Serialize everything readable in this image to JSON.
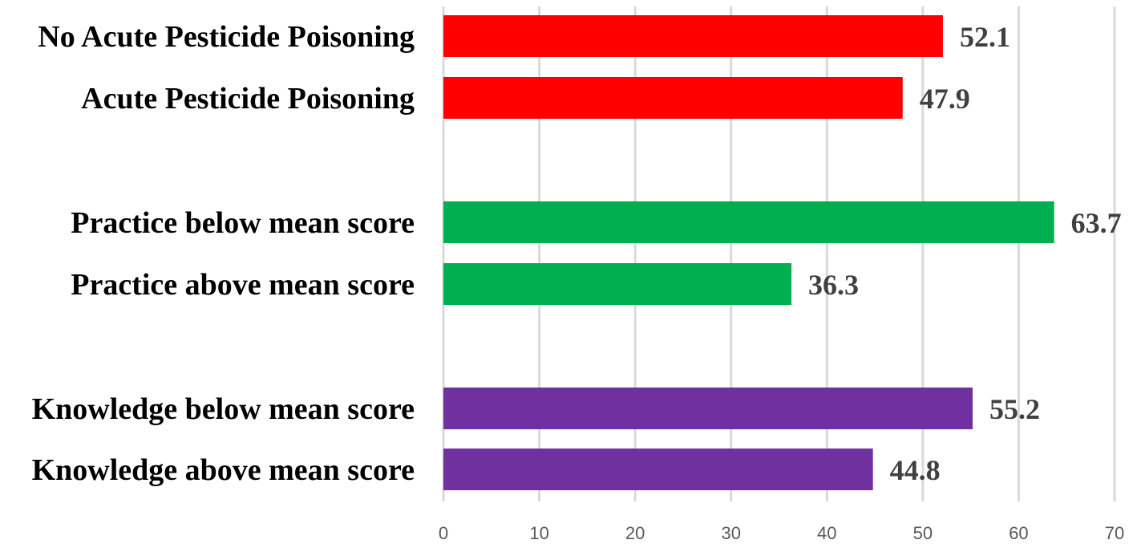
{
  "chart_data": {
    "type": "bar",
    "orientation": "horizontal",
    "categories": [
      "No Acute Pesticide Poisoning",
      "Acute Pesticide Poisoning",
      "Practice below mean score",
      "Practice above mean score",
      "Knowledge below mean score",
      "Knowledge above mean score"
    ],
    "values": [
      52.1,
      47.9,
      63.7,
      36.3,
      55.2,
      44.8
    ],
    "value_labels": [
      "52.1",
      "47.9",
      "63.7",
      "36.3",
      "55.2",
      "44.8"
    ],
    "groups": [
      {
        "color": "#ff0000",
        "members": [
          0,
          1
        ]
      },
      {
        "color": "#00b050",
        "members": [
          2,
          3
        ]
      },
      {
        "color": "#7030a0",
        "members": [
          4,
          5
        ]
      }
    ],
    "colors": [
      "#ff0000",
      "#ff0000",
      "#00b050",
      "#00b050",
      "#7030a0",
      "#7030a0"
    ],
    "xlim": [
      0,
      70
    ],
    "xticks": [
      0,
      10,
      20,
      30,
      40,
      50,
      60,
      70
    ],
    "xtick_labels": [
      "0",
      "10",
      "20",
      "30",
      "40",
      "50",
      "60",
      "70"
    ],
    "title": "",
    "xlabel": "",
    "ylabel": "",
    "grid": "vertical",
    "legend": "none"
  }
}
